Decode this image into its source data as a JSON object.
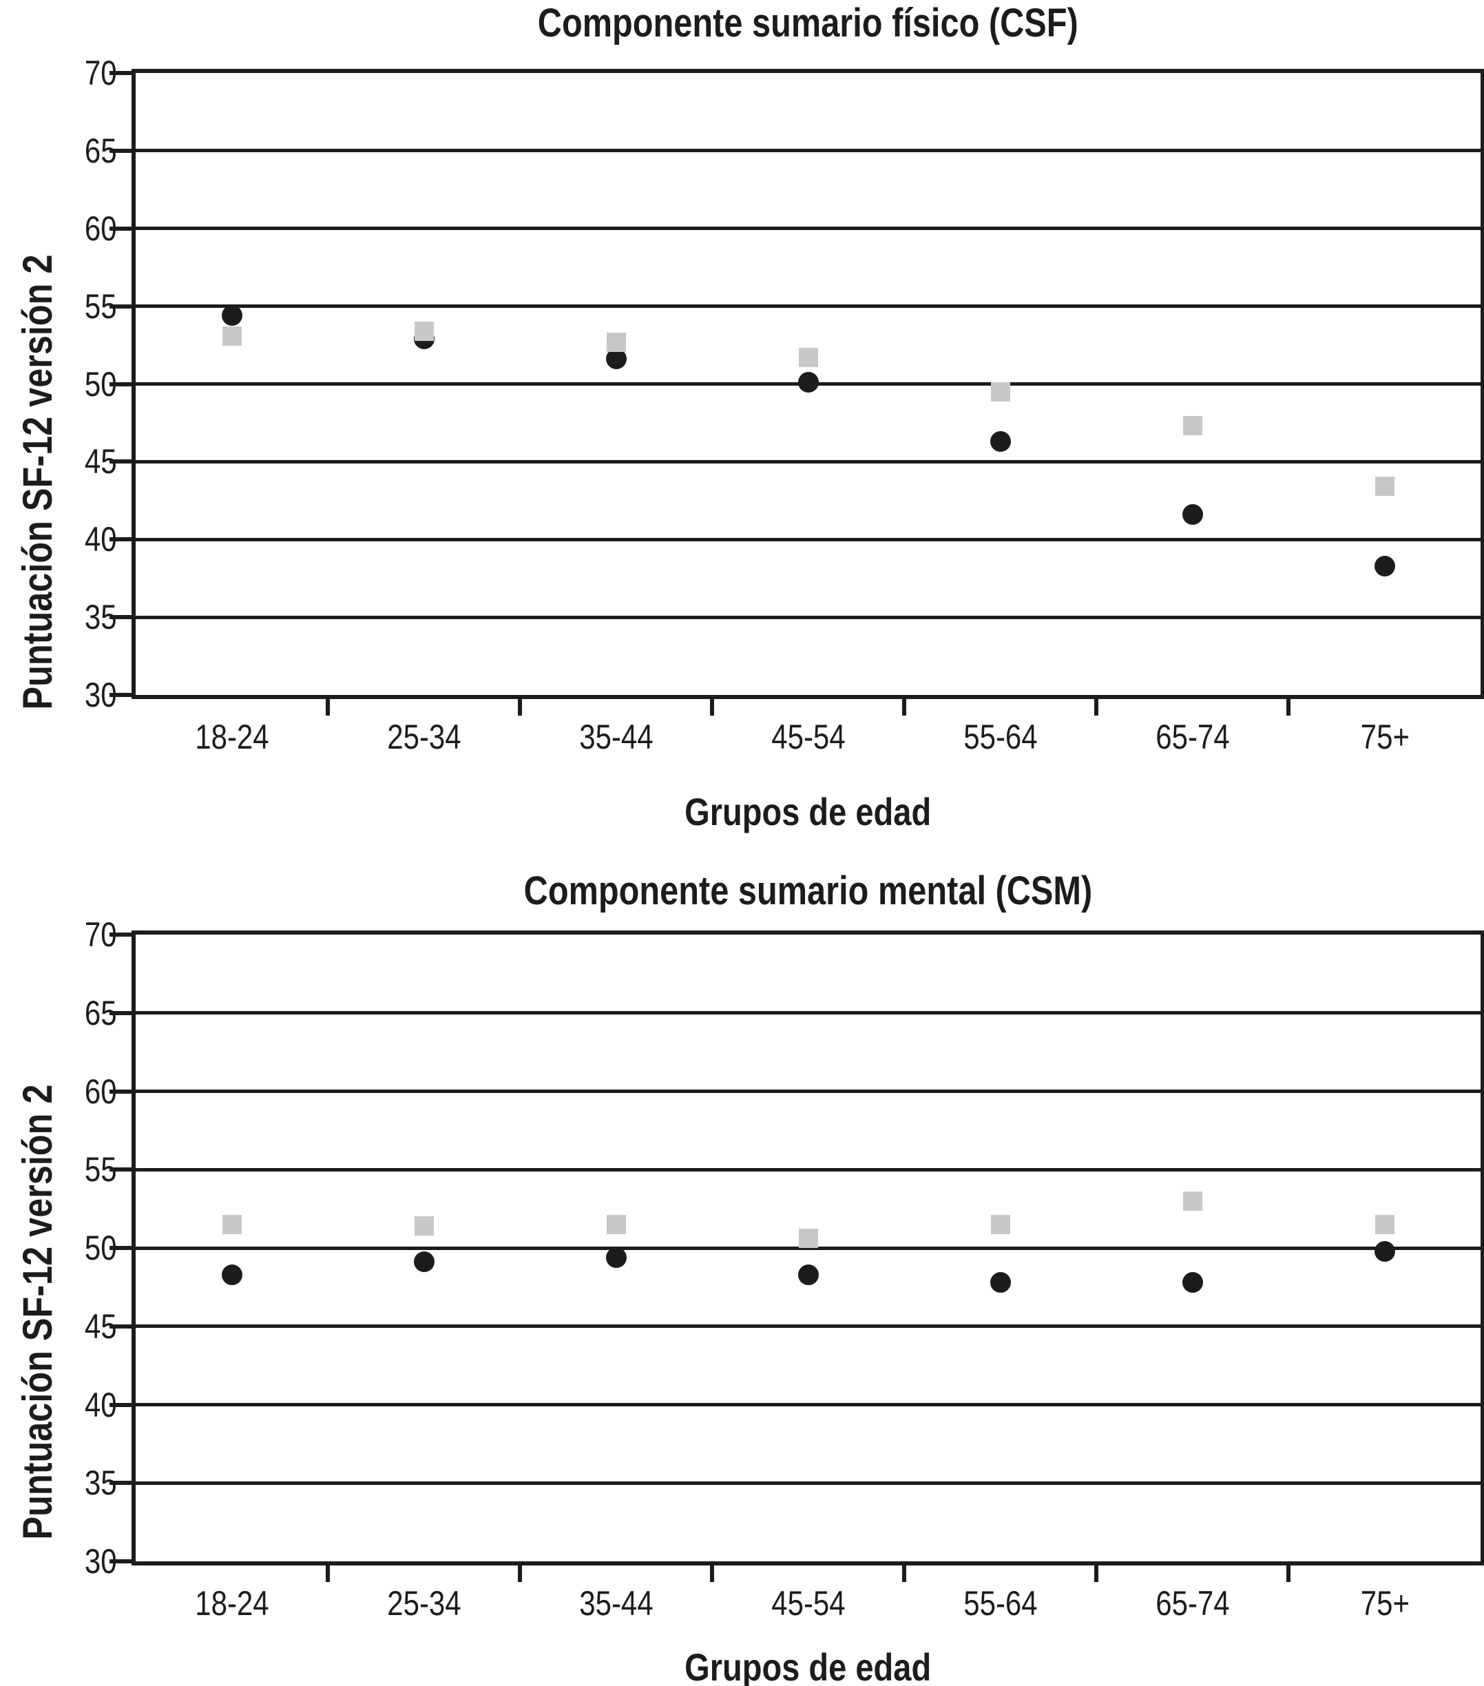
{
  "figure": {
    "background": "#ffffff",
    "text_color": "#1c1c1c"
  },
  "chart_data": [
    {
      "type": "scatter",
      "title": "Componente sumario físico (CSF)",
      "xlabel": "Grupos de edad",
      "ylabel": "Puntuación SF-12 versión 2",
      "categories": [
        "18-24",
        "25-34",
        "35-44",
        "45-54",
        "55-64",
        "65-74",
        "75+"
      ],
      "ylim": [
        30,
        70
      ],
      "yticks": [
        30,
        35,
        40,
        45,
        50,
        55,
        60,
        65,
        70
      ],
      "grid": true,
      "legend_position": "none",
      "series": [
        {
          "name": "circulos-negros",
          "marker": "circle",
          "color": "#1c1c1c",
          "values": [
            54.4,
            52.9,
            51.6,
            50.1,
            46.3,
            41.6,
            38.3
          ]
        },
        {
          "name": "cuadrados-grises",
          "marker": "square",
          "color": "#c7c8ca",
          "values": [
            53.1,
            53.4,
            52.7,
            51.7,
            49.5,
            47.3,
            43.4
          ]
        }
      ]
    },
    {
      "type": "scatter",
      "title": "Componente sumario mental (CSM)",
      "xlabel": "Grupos de edad",
      "ylabel": "Puntuación SF-12 versión 2",
      "categories": [
        "18-24",
        "25-34",
        "35-44",
        "45-54",
        "55-64",
        "65-74",
        "75+"
      ],
      "ylim": [
        30,
        70
      ],
      "yticks": [
        30,
        35,
        40,
        45,
        50,
        55,
        60,
        65,
        70
      ],
      "grid": true,
      "legend_position": "none",
      "series": [
        {
          "name": "circulos-negros",
          "marker": "circle",
          "color": "#1c1c1c",
          "values": [
            48.3,
            49.1,
            49.4,
            48.3,
            47.8,
            47.8,
            49.8
          ]
        },
        {
          "name": "cuadrados-grises",
          "marker": "square",
          "color": "#c7c8ca",
          "values": [
            51.5,
            51.4,
            51.5,
            50.6,
            51.5,
            53.0,
            51.5
          ]
        }
      ]
    }
  ]
}
